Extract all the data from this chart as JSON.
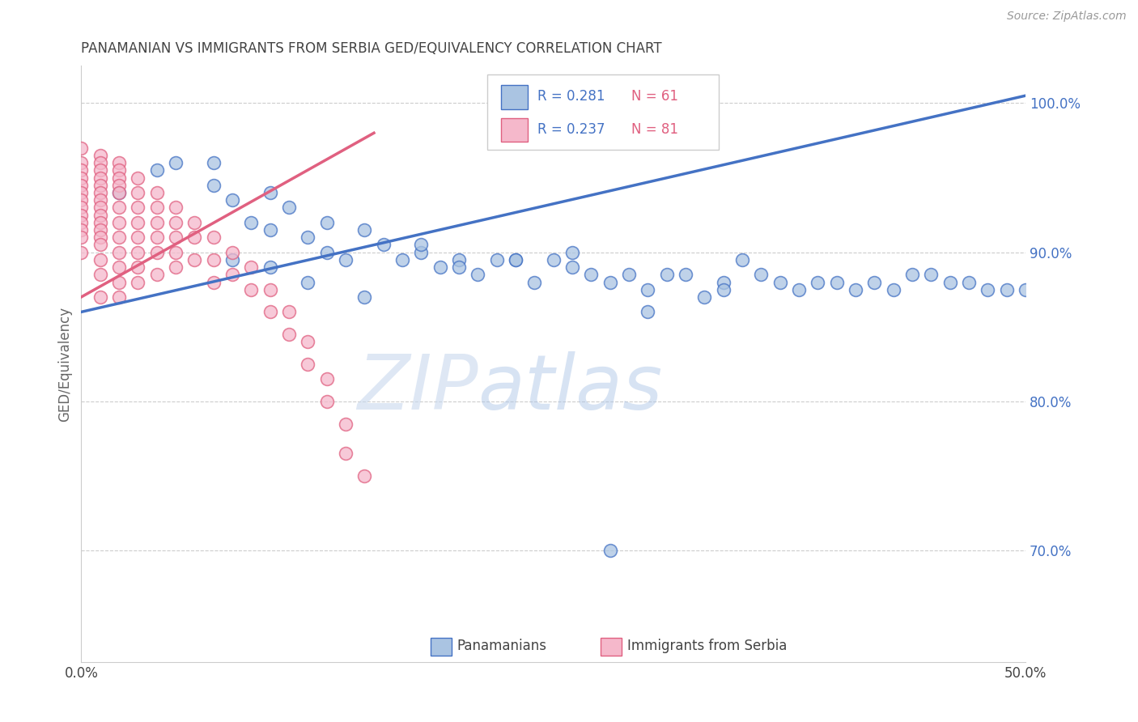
{
  "title": "PANAMANIAN VS IMMIGRANTS FROM SERBIA GED/EQUIVALENCY CORRELATION CHART",
  "source": "Source: ZipAtlas.com",
  "ylabel": "GED/Equivalency",
  "xlim": [
    0.0,
    0.5
  ],
  "ylim": [
    0.625,
    1.025
  ],
  "yticks_right": [
    0.7,
    0.8,
    0.9,
    1.0
  ],
  "ytick_right_labels": [
    "70.0%",
    "80.0%",
    "90.0%",
    "100.0%"
  ],
  "blue_R": 0.281,
  "blue_N": 61,
  "pink_R": 0.237,
  "pink_N": 81,
  "blue_color": "#aac4e2",
  "blue_edge_color": "#4472c4",
  "pink_color": "#f5b8cb",
  "pink_edge_color": "#e06080",
  "legend_label_blue": "Panamanians",
  "legend_label_pink": "Immigrants from Serbia",
  "watermark_zip": "ZIP",
  "watermark_atlas": "atlas",
  "blue_line_x": [
    0.0,
    0.5
  ],
  "blue_line_y": [
    0.86,
    1.005
  ],
  "pink_line_x": [
    0.0,
    0.155
  ],
  "pink_line_y": [
    0.87,
    0.98
  ],
  "grid_color": "#cccccc",
  "title_color": "#444444",
  "axis_label_color": "#666666",
  "right_tick_color": "#4472c4",
  "legend_R_color": "#4472c4",
  "legend_N_color": "#e06080",
  "blue_scatter_x": [
    0.02,
    0.04,
    0.05,
    0.07,
    0.07,
    0.08,
    0.09,
    0.1,
    0.1,
    0.11,
    0.12,
    0.13,
    0.13,
    0.14,
    0.15,
    0.16,
    0.17,
    0.18,
    0.19,
    0.2,
    0.21,
    0.22,
    0.23,
    0.24,
    0.25,
    0.26,
    0.27,
    0.28,
    0.29,
    0.3,
    0.31,
    0.32,
    0.33,
    0.34,
    0.35,
    0.36,
    0.37,
    0.38,
    0.39,
    0.4,
    0.41,
    0.42,
    0.43,
    0.44,
    0.45,
    0.46,
    0.47,
    0.48,
    0.49,
    0.5,
    0.08,
    0.1,
    0.12,
    0.15,
    0.18,
    0.2,
    0.23,
    0.26,
    0.3,
    0.34,
    0.28
  ],
  "blue_scatter_y": [
    0.94,
    0.955,
    0.96,
    0.96,
    0.945,
    0.935,
    0.92,
    0.915,
    0.94,
    0.93,
    0.91,
    0.92,
    0.9,
    0.895,
    0.915,
    0.905,
    0.895,
    0.9,
    0.89,
    0.895,
    0.885,
    0.895,
    0.895,
    0.88,
    0.895,
    0.89,
    0.885,
    0.88,
    0.885,
    0.875,
    0.885,
    0.885,
    0.87,
    0.88,
    0.895,
    0.885,
    0.88,
    0.875,
    0.88,
    0.88,
    0.875,
    0.88,
    0.875,
    0.885,
    0.885,
    0.88,
    0.88,
    0.875,
    0.875,
    0.875,
    0.895,
    0.89,
    0.88,
    0.87,
    0.905,
    0.89,
    0.895,
    0.9,
    0.86,
    0.875,
    0.7
  ],
  "pink_scatter_x": [
    0.0,
    0.0,
    0.0,
    0.0,
    0.0,
    0.0,
    0.0,
    0.0,
    0.0,
    0.0,
    0.0,
    0.0,
    0.0,
    0.01,
    0.01,
    0.01,
    0.01,
    0.01,
    0.01,
    0.01,
    0.01,
    0.01,
    0.01,
    0.01,
    0.01,
    0.01,
    0.01,
    0.01,
    0.02,
    0.02,
    0.02,
    0.02,
    0.02,
    0.02,
    0.02,
    0.02,
    0.02,
    0.02,
    0.02,
    0.02,
    0.03,
    0.03,
    0.03,
    0.03,
    0.03,
    0.03,
    0.03,
    0.03,
    0.04,
    0.04,
    0.04,
    0.04,
    0.04,
    0.04,
    0.05,
    0.05,
    0.05,
    0.05,
    0.05,
    0.06,
    0.06,
    0.06,
    0.07,
    0.07,
    0.07,
    0.08,
    0.08,
    0.09,
    0.09,
    0.1,
    0.1,
    0.11,
    0.11,
    0.12,
    0.12,
    0.13,
    0.13,
    0.14,
    0.14,
    0.15,
    0.01
  ],
  "pink_scatter_y": [
    0.97,
    0.96,
    0.955,
    0.95,
    0.945,
    0.94,
    0.935,
    0.93,
    0.925,
    0.92,
    0.915,
    0.91,
    0.9,
    0.965,
    0.96,
    0.955,
    0.95,
    0.945,
    0.94,
    0.935,
    0.93,
    0.925,
    0.92,
    0.915,
    0.91,
    0.905,
    0.895,
    0.885,
    0.96,
    0.955,
    0.95,
    0.945,
    0.94,
    0.93,
    0.92,
    0.91,
    0.9,
    0.89,
    0.88,
    0.87,
    0.95,
    0.94,
    0.93,
    0.92,
    0.91,
    0.9,
    0.89,
    0.88,
    0.94,
    0.93,
    0.92,
    0.91,
    0.9,
    0.885,
    0.93,
    0.92,
    0.91,
    0.9,
    0.89,
    0.92,
    0.91,
    0.895,
    0.91,
    0.895,
    0.88,
    0.9,
    0.885,
    0.89,
    0.875,
    0.875,
    0.86,
    0.86,
    0.845,
    0.84,
    0.825,
    0.815,
    0.8,
    0.785,
    0.765,
    0.75,
    0.87
  ]
}
